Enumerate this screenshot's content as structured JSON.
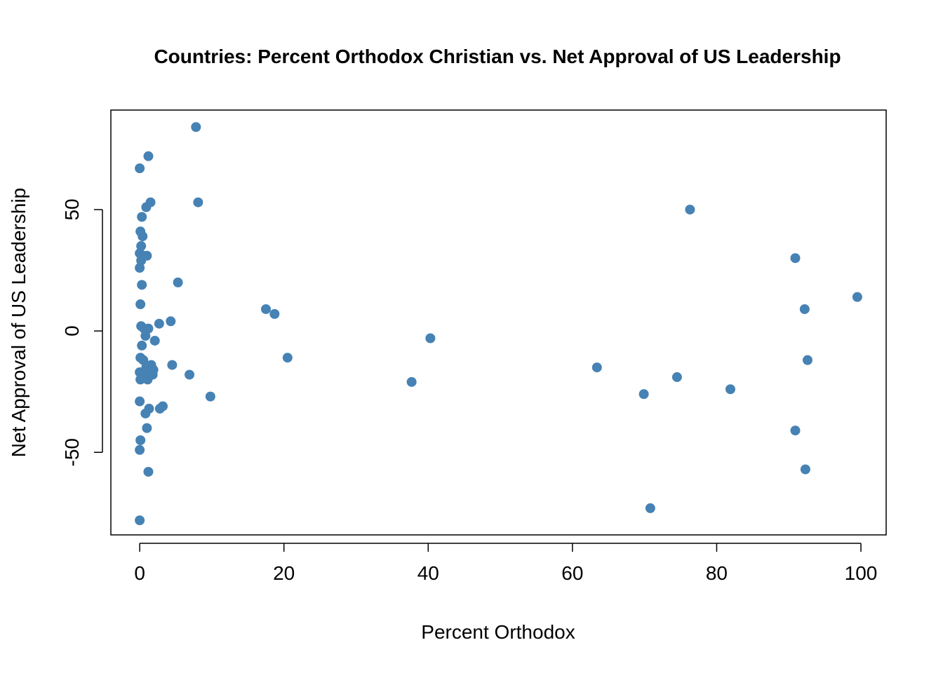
{
  "chart_data": {
    "type": "scatter",
    "title": "Countries: Percent Orthodox Christian vs. Net Approval of US Leadership",
    "xlabel": "Percent Orthodox",
    "ylabel": "Net Approval of US Leadership",
    "xlim": [
      -4,
      103.5
    ],
    "ylim": [
      -84,
      91
    ],
    "x_ticks": [
      0,
      20,
      40,
      60,
      80,
      100
    ],
    "y_ticks": [
      -50,
      0,
      50
    ],
    "x_tick_labels": [
      "0",
      "20",
      "40",
      "60",
      "80",
      "100"
    ],
    "y_tick_labels": [
      "-50",
      "0",
      "50"
    ],
    "point_color": "#4682b4",
    "grid": false,
    "points": [
      {
        "x": 0.0,
        "y": 67
      },
      {
        "x": 1.2,
        "y": 72
      },
      {
        "x": 7.8,
        "y": 84
      },
      {
        "x": 8.1,
        "y": 53
      },
      {
        "x": 1.5,
        "y": 53
      },
      {
        "x": 0.9,
        "y": 51
      },
      {
        "x": 0.3,
        "y": 47
      },
      {
        "x": 0.1,
        "y": 41
      },
      {
        "x": 0.4,
        "y": 39
      },
      {
        "x": 0.2,
        "y": 35
      },
      {
        "x": 0.0,
        "y": 32
      },
      {
        "x": 0.5,
        "y": 31
      },
      {
        "x": 1.0,
        "y": 31
      },
      {
        "x": 0.2,
        "y": 29
      },
      {
        "x": 0.0,
        "y": 26
      },
      {
        "x": 0.3,
        "y": 19
      },
      {
        "x": 5.3,
        "y": 20
      },
      {
        "x": 0.1,
        "y": 11
      },
      {
        "x": 0.2,
        "y": 2
      },
      {
        "x": 0.6,
        "y": 1
      },
      {
        "x": 1.2,
        "y": 1
      },
      {
        "x": 2.7,
        "y": 3
      },
      {
        "x": 4.3,
        "y": 4
      },
      {
        "x": 0.8,
        "y": -2
      },
      {
        "x": 2.1,
        "y": -4
      },
      {
        "x": 0.3,
        "y": -6
      },
      {
        "x": 0.1,
        "y": -11
      },
      {
        "x": 0.5,
        "y": -12
      },
      {
        "x": 1.6,
        "y": -14
      },
      {
        "x": 4.5,
        "y": -14
      },
      {
        "x": 0.9,
        "y": -15
      },
      {
        "x": 1.9,
        "y": -16
      },
      {
        "x": 0.0,
        "y": -17
      },
      {
        "x": 0.7,
        "y": -17
      },
      {
        "x": 1.4,
        "y": -18
      },
      {
        "x": 1.8,
        "y": -18
      },
      {
        "x": 6.9,
        "y": -18
      },
      {
        "x": 0.1,
        "y": -20
      },
      {
        "x": 1.1,
        "y": -20
      },
      {
        "x": 9.8,
        "y": -27
      },
      {
        "x": 0.0,
        "y": -29
      },
      {
        "x": 3.2,
        "y": -31
      },
      {
        "x": 2.8,
        "y": -32
      },
      {
        "x": 1.3,
        "y": -32
      },
      {
        "x": 0.8,
        "y": -34
      },
      {
        "x": 1.0,
        "y": -40
      },
      {
        "x": 0.1,
        "y": -45
      },
      {
        "x": 0.0,
        "y": -49
      },
      {
        "x": 1.2,
        "y": -58
      },
      {
        "x": 0.0,
        "y": -78
      },
      {
        "x": 17.5,
        "y": 9
      },
      {
        "x": 18.7,
        "y": 7
      },
      {
        "x": 20.5,
        "y": -11
      },
      {
        "x": 37.7,
        "y": -21
      },
      {
        "x": 40.3,
        "y": -3
      },
      {
        "x": 63.4,
        "y": -15
      },
      {
        "x": 69.9,
        "y": -26
      },
      {
        "x": 70.8,
        "y": -73
      },
      {
        "x": 74.5,
        "y": -19
      },
      {
        "x": 76.3,
        "y": 50
      },
      {
        "x": 81.9,
        "y": -24
      },
      {
        "x": 90.9,
        "y": 30
      },
      {
        "x": 90.9,
        "y": -41
      },
      {
        "x": 92.2,
        "y": 9
      },
      {
        "x": 92.3,
        "y": -57
      },
      {
        "x": 92.6,
        "y": -12
      },
      {
        "x": 99.5,
        "y": 14
      }
    ]
  }
}
